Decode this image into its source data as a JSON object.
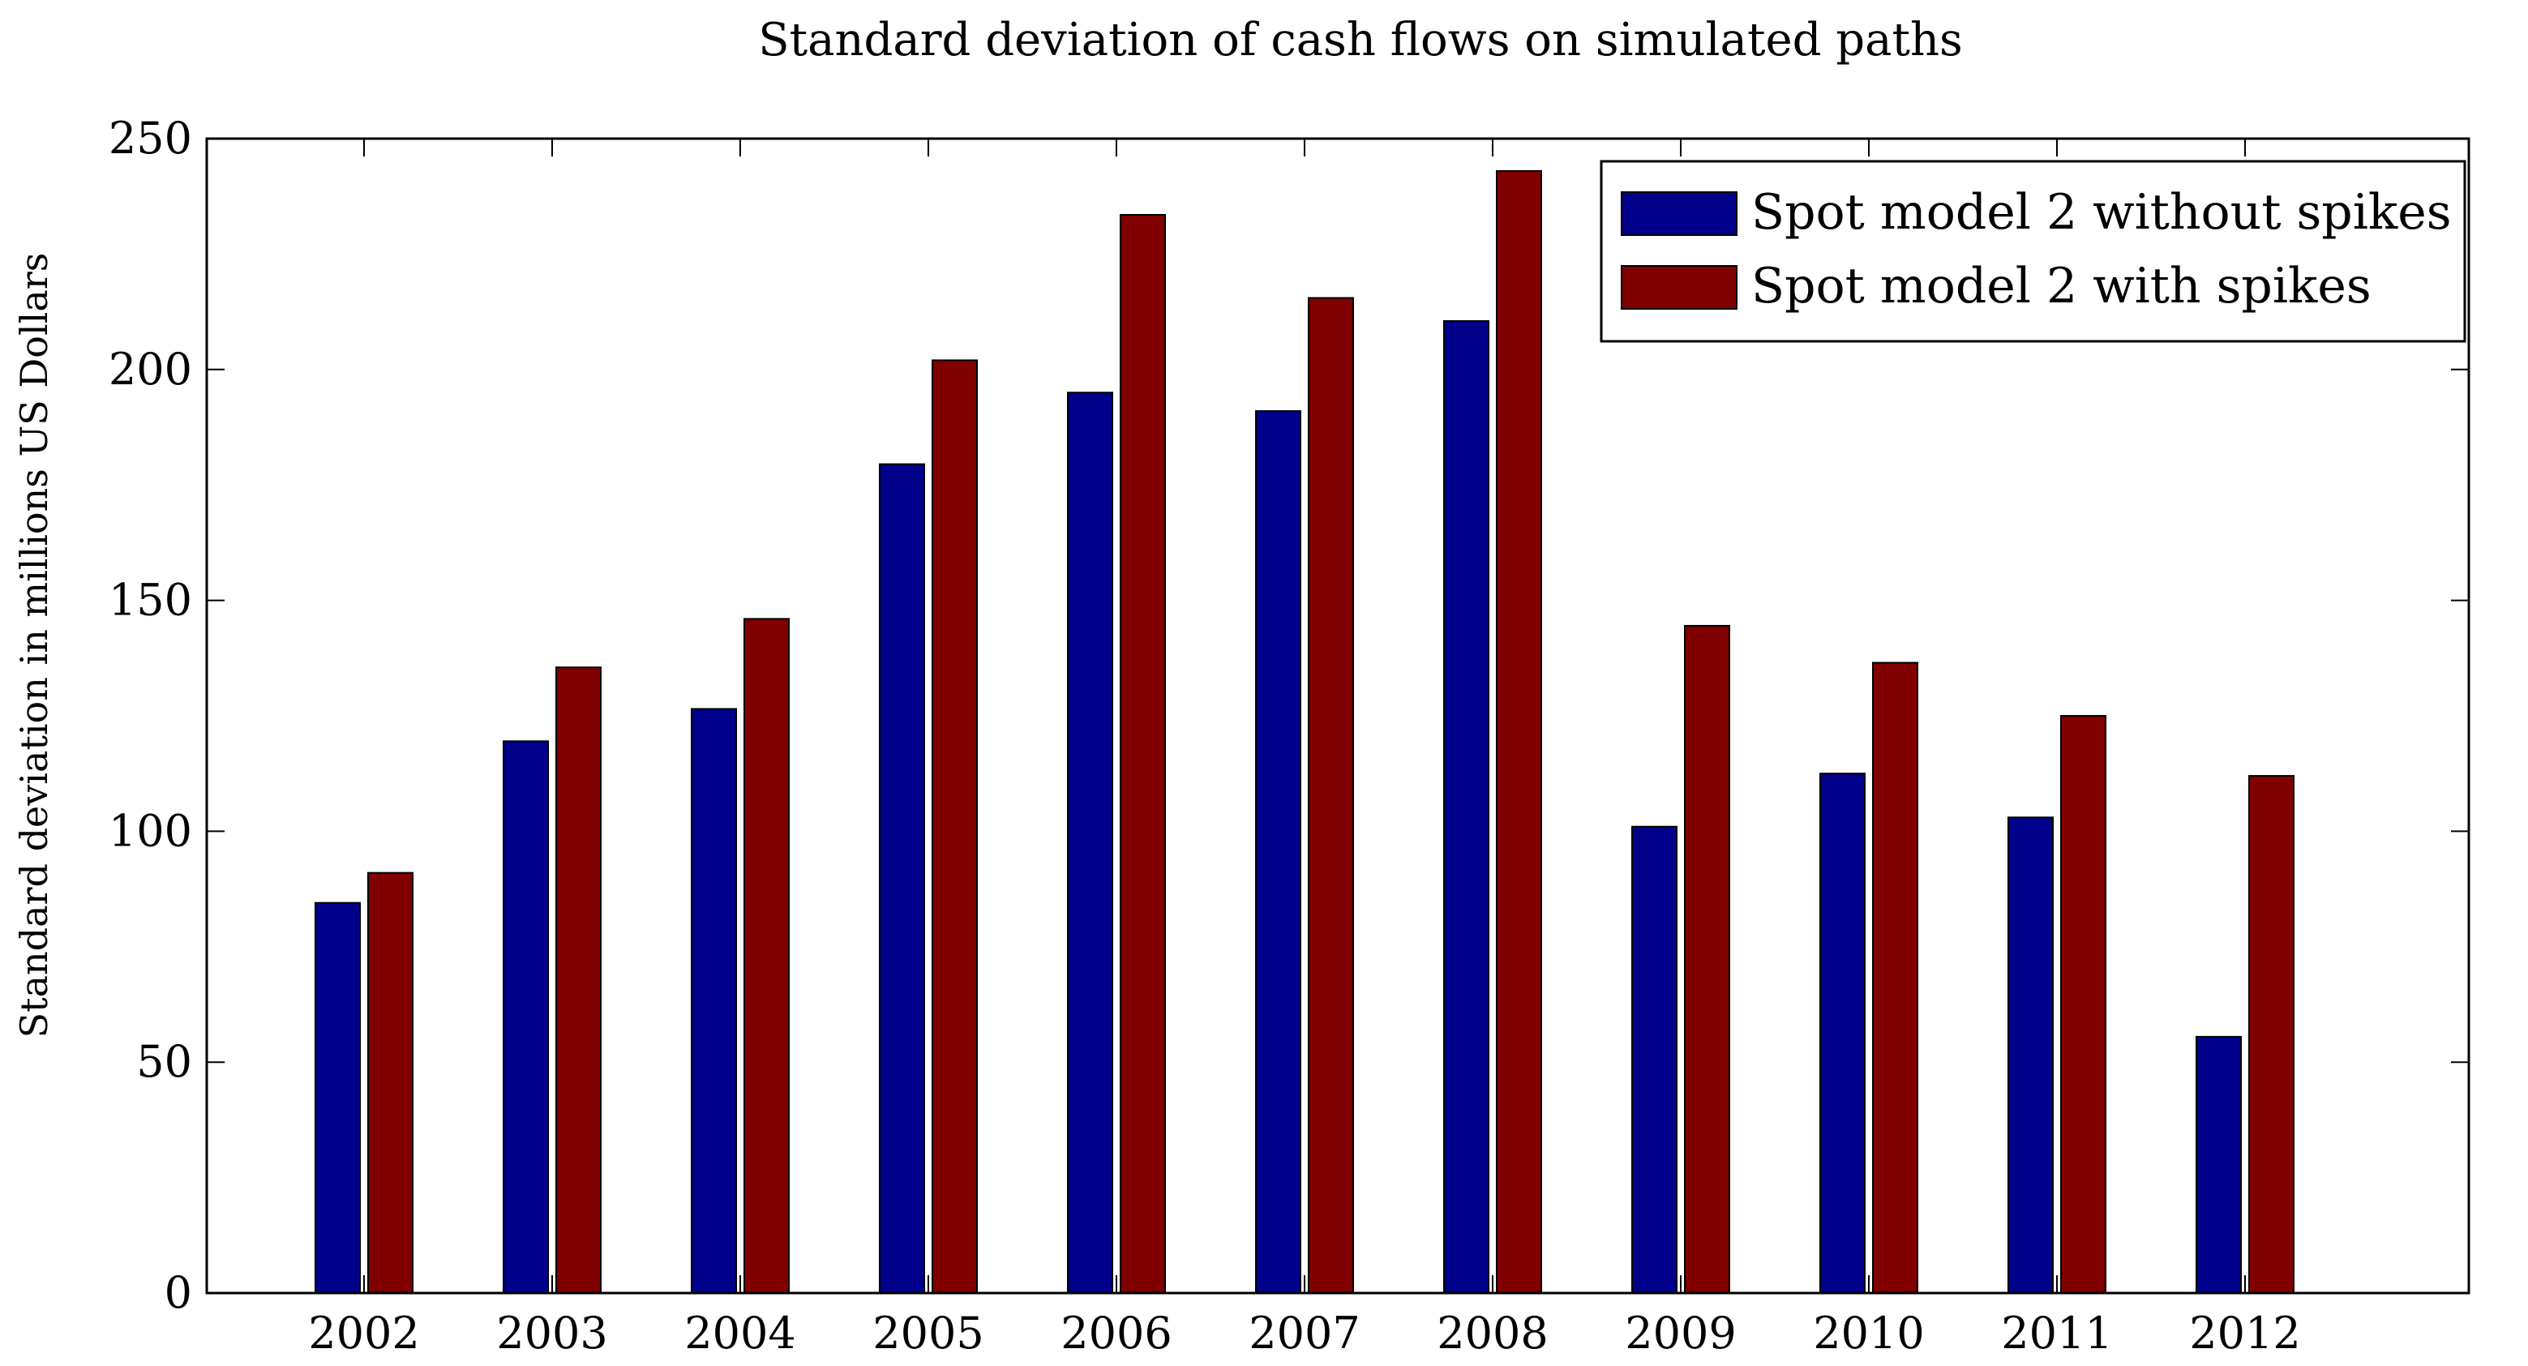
{
  "chart_data": {
    "type": "bar",
    "title": "Standard deviation of cash flows on simulated paths",
    "xlabel": "",
    "ylabel": "Standard deviation in millions US Dollars",
    "categories": [
      "2002",
      "2003",
      "2004",
      "2005",
      "2006",
      "2007",
      "2008",
      "2009",
      "2010",
      "2011",
      "2012"
    ],
    "series": [
      {
        "name": "Spot model 2 without spikes",
        "color": "#00008b",
        "values": [
          84.5,
          119.5,
          126.5,
          179.5,
          195,
          191,
          210.5,
          101,
          112.5,
          103,
          55.5
        ]
      },
      {
        "name": "Spot model 2 with spikes",
        "color": "#800000",
        "values": [
          91,
          135.5,
          146,
          202,
          233.5,
          215.5,
          243,
          144.5,
          136.5,
          125,
          112
        ]
      }
    ],
    "ylim": [
      0,
      250
    ],
    "yticks": [
      0,
      50,
      100,
      150,
      200,
      250
    ],
    "legend_position": "top-right",
    "grid": false
  }
}
